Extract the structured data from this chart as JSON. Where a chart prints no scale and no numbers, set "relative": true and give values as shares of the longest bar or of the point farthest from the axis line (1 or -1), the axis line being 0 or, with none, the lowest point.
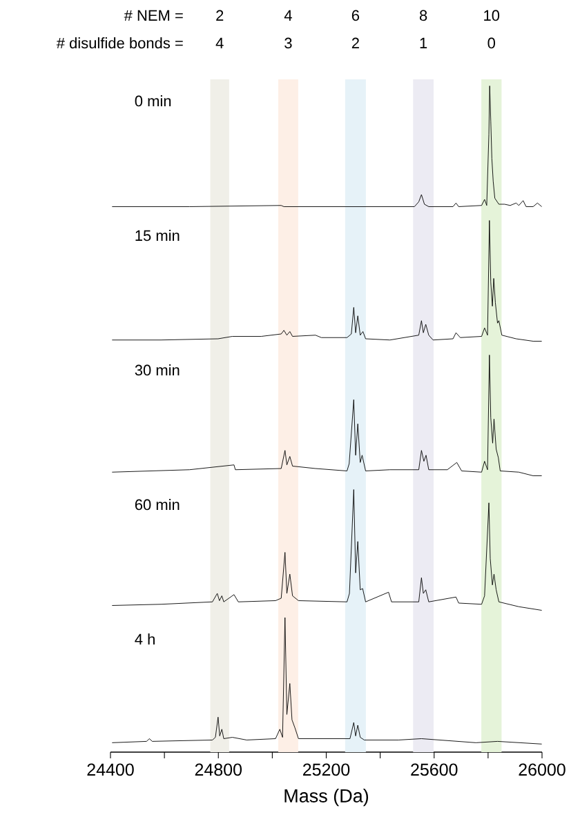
{
  "chart_data": [
    {
      "type": "line",
      "title": "0  min",
      "relative": true,
      "xlim": [
        24400,
        26000
      ],
      "tick_labels": false,
      "bands": [
        {
          "axis": "x",
          "from": 24770,
          "to": 24840,
          "color": "#f0efe8"
        },
        {
          "axis": "x",
          "from": 25022,
          "to": 25096,
          "color": "#fdefe6"
        },
        {
          "axis": "x",
          "from": 25270,
          "to": 25347,
          "color": "#e6f2f8"
        },
        {
          "axis": "x",
          "from": 25522,
          "to": 25598,
          "color": "#ecebf3"
        },
        {
          "axis": "x",
          "from": 25775,
          "to": 25850,
          "color": "#e5f3d9"
        }
      ],
      "annotations": [
        "# NEM =",
        "2",
        "4",
        "6",
        "8",
        "10",
        "# disulfide bonds =",
        "4",
        "3",
        "2",
        "1",
        "0"
      ],
      "series": [
        {
          "color": "#000000",
          "x": [
            24406,
            24693,
            25033,
            25043,
            25436,
            25527,
            25543,
            25553,
            25564,
            25580,
            25670,
            25681,
            25691,
            25776,
            25787,
            25795,
            25803,
            25806,
            25810,
            25814,
            25819,
            25825,
            25840,
            25861,
            25882,
            25904,
            25914,
            25930,
            25941,
            25967,
            25983,
            25999
          ],
          "values": [
            0,
            0,
            0.01,
            0,
            0,
            0,
            0.04,
            0.1,
            0.02,
            0,
            0,
            0.03,
            0,
            0.01,
            0.06,
            0.01,
            0.6,
            1,
            0.71,
            0.4,
            0.21,
            0.07,
            0.02,
            0.02,
            0.01,
            0.03,
            0.01,
            0.05,
            0,
            0,
            0.03,
            0
          ]
        }
      ]
    },
    {
      "type": "line",
      "title": "15 min",
      "relative": true,
      "xlim": [
        24400,
        26000
      ],
      "tick_labels": false,
      "bands": [
        {
          "axis": "x",
          "from": 24770,
          "to": 24840,
          "color": "#f0efe8"
        },
        {
          "axis": "x",
          "from": 25022,
          "to": 25096,
          "color": "#fdefe6"
        },
        {
          "axis": "x",
          "from": 25270,
          "to": 25347,
          "color": "#e6f2f8"
        },
        {
          "axis": "x",
          "from": 25522,
          "to": 25598,
          "color": "#ecebf3"
        },
        {
          "axis": "x",
          "from": 25775,
          "to": 25850,
          "color": "#e5f3d9"
        }
      ],
      "series": [
        {
          "color": "#000000",
          "x": [
            24406,
            24587,
            24799,
            24852,
            24959,
            25033,
            25043,
            25054,
            25065,
            25075,
            25160,
            25182,
            25277,
            25293,
            25302,
            25309,
            25317,
            25326,
            25336,
            25346,
            25436,
            25543,
            25553,
            25560,
            25569,
            25580,
            25596,
            25670,
            25681,
            25697,
            25776,
            25787,
            25798,
            25805,
            25810,
            25816,
            25821,
            25827,
            25835,
            25840,
            25851,
            25904,
            25967,
            25999
          ],
          "values": [
            0.01,
            0.01,
            0.02,
            0.04,
            0.04,
            0.06,
            0.09,
            0.05,
            0.08,
            0.04,
            0.05,
            0.03,
            0.03,
            0.06,
            0.28,
            0.07,
            0.21,
            0.05,
            0.08,
            0.02,
            0.01,
            0.05,
            0.17,
            0.07,
            0.14,
            0.05,
            0.01,
            0.02,
            0.07,
            0.03,
            0.04,
            0.11,
            0.05,
            1,
            0.49,
            0.29,
            0.52,
            0.32,
            0.15,
            0.17,
            0.05,
            0.02,
            0,
            0
          ]
        }
      ]
    },
    {
      "type": "line",
      "title": "30 min",
      "relative": true,
      "xlim": [
        24400,
        26000
      ],
      "tick_labels": false,
      "bands": [
        {
          "axis": "x",
          "from": 24770,
          "to": 24840,
          "color": "#f0efe8"
        },
        {
          "axis": "x",
          "from": 25022,
          "to": 25096,
          "color": "#fdefe6"
        },
        {
          "axis": "x",
          "from": 25270,
          "to": 25347,
          "color": "#e6f2f8"
        },
        {
          "axis": "x",
          "from": 25522,
          "to": 25598,
          "color": "#ecebf3"
        },
        {
          "axis": "x",
          "from": 25775,
          "to": 25850,
          "color": "#e5f3d9"
        }
      ],
      "series": [
        {
          "color": "#000000",
          "x": [
            24406,
            24693,
            24858,
            24863,
            25033,
            25047,
            25054,
            25065,
            25075,
            25160,
            25277,
            25285,
            25302,
            25309,
            25317,
            25326,
            25333,
            25346,
            25436,
            25543,
            25553,
            25562,
            25570,
            25580,
            25649,
            25684,
            25702,
            25776,
            25787,
            25798,
            25805,
            25810,
            25817,
            25822,
            25830,
            25838,
            25845,
            25914,
            25967,
            25999
          ],
          "values": [
            0.03,
            0.05,
            0.09,
            0.05,
            0.06,
            0.21,
            0.09,
            0.16,
            0.08,
            0.06,
            0.04,
            0.1,
            0.63,
            0.17,
            0.43,
            0.11,
            0.17,
            0.04,
            0.05,
            0.05,
            0.21,
            0.12,
            0.17,
            0.05,
            0.05,
            0.11,
            0.04,
            0.03,
            0.12,
            0.05,
            1,
            0.48,
            0.27,
            0.47,
            0.22,
            0.15,
            0.04,
            0.03,
            0,
            0
          ]
        }
      ]
    },
    {
      "type": "line",
      "title": "60 min",
      "relative": true,
      "xlim": [
        24400,
        26000
      ],
      "tick_labels": false,
      "bands": [
        {
          "axis": "x",
          "from": 24770,
          "to": 24840,
          "color": "#f0efe8"
        },
        {
          "axis": "x",
          "from": 25022,
          "to": 25096,
          "color": "#fdefe6"
        },
        {
          "axis": "x",
          "from": 25270,
          "to": 25347,
          "color": "#e6f2f8"
        },
        {
          "axis": "x",
          "from": 25522,
          "to": 25598,
          "color": "#ecebf3"
        },
        {
          "axis": "x",
          "from": 25775,
          "to": 25850,
          "color": "#e5f3d9"
        }
      ],
      "series": [
        {
          "color": "#000000",
          "x": [
            24406,
            24587,
            24778,
            24796,
            24804,
            24813,
            24820,
            24858,
            24874,
            25012,
            25033,
            25047,
            25054,
            25065,
            25075,
            25097,
            25277,
            25286,
            25302,
            25309,
            25317,
            25326,
            25335,
            25346,
            25431,
            25442,
            25543,
            25553,
            25560,
            25569,
            25580,
            25681,
            25691,
            25776,
            25787,
            25803,
            25808,
            25816,
            25822,
            25830,
            25840,
            25914,
            25999
          ],
          "values": [
            0.04,
            0.05,
            0.07,
            0.14,
            0.08,
            0.12,
            0.07,
            0.13,
            0.07,
            0.08,
            0.1,
            0.48,
            0.14,
            0.3,
            0.12,
            0.08,
            0.07,
            0.14,
            1,
            0.31,
            0.57,
            0.17,
            0.18,
            0.07,
            0.15,
            0.07,
            0.07,
            0.27,
            0.14,
            0.17,
            0.07,
            0.11,
            0.06,
            0.05,
            0.12,
            0.89,
            0.43,
            0.21,
            0.3,
            0.17,
            0.07,
            0.03,
            0
          ]
        }
      ]
    },
    {
      "type": "line",
      "title": "4 h",
      "relative": true,
      "xlim": [
        24400,
        26000
      ],
      "tick_labels": "x",
      "xlabel": "Mass (Da)",
      "xticks": [
        24400,
        {
          "value": 24600,
          "label": null
        },
        24800,
        {
          "value": 25000,
          "label": null
        },
        25200,
        {
          "value": 25400,
          "label": null
        },
        25600,
        {
          "value": 25800,
          "label": null
        },
        26000
      ],
      "bands": [
        {
          "axis": "x",
          "from": 24770,
          "to": 24840,
          "color": "#f0efe8"
        },
        {
          "axis": "x",
          "from": 25022,
          "to": 25096,
          "color": "#fdefe6"
        },
        {
          "axis": "x",
          "from": 25270,
          "to": 25347,
          "color": "#e6f2f8"
        },
        {
          "axis": "x",
          "from": 25522,
          "to": 25598,
          "color": "#ecebf3"
        },
        {
          "axis": "x",
          "from": 25775,
          "to": 25850,
          "color": "#e5f3d9"
        }
      ],
      "series": [
        {
          "color": "#000000",
          "x": [
            24406,
            24534,
            24544,
            24555,
            24778,
            24789,
            24799,
            24805,
            24813,
            24820,
            24852,
            24905,
            25012,
            25028,
            25038,
            25047,
            25054,
            25065,
            25073,
            25084,
            25097,
            25224,
            25288,
            25302,
            25309,
            25317,
            25326,
            25341,
            25468,
            25553,
            25755,
            25835,
            25999
          ],
          "values": [
            0.07,
            0.08,
            0.1,
            0.08,
            0.09,
            0.11,
            0.26,
            0.12,
            0.17,
            0.1,
            0.11,
            0.09,
            0.1,
            0.17,
            0.11,
            1,
            0.28,
            0.51,
            0.24,
            0.18,
            0.1,
            0.1,
            0.1,
            0.22,
            0.12,
            0.2,
            0.11,
            0.09,
            0.09,
            0.1,
            0.07,
            0.08,
            0.06
          ]
        }
      ]
    }
  ]
}
